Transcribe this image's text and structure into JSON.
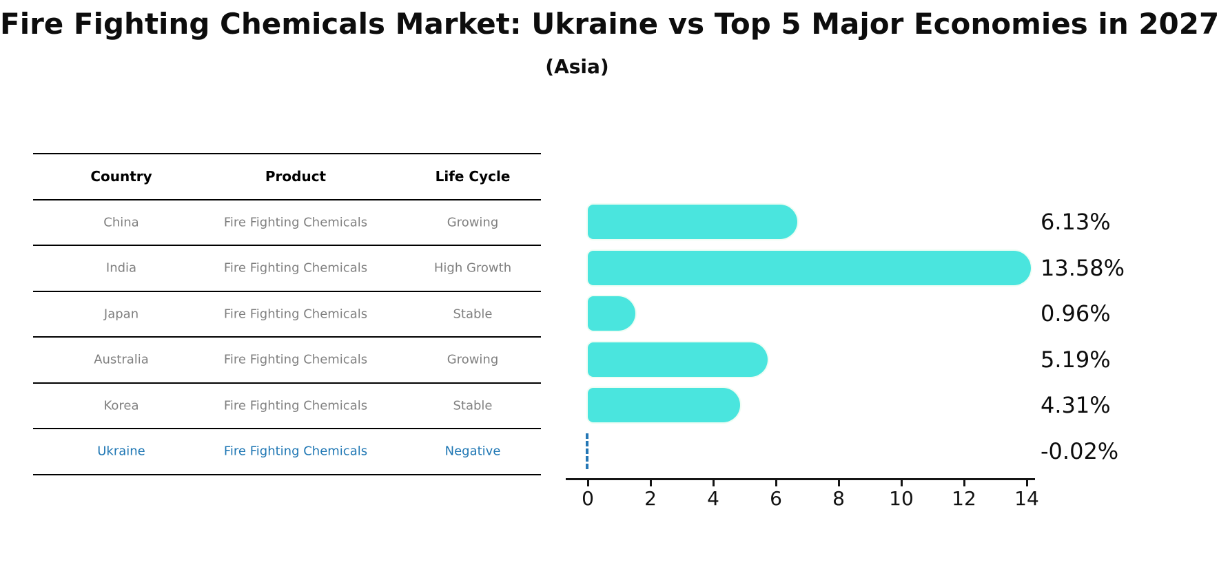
{
  "title": "Fire Fighting Chemicals Market: Ukraine vs Top 5 Major Economies in 2027",
  "subtitle": "(Asia)",
  "table": {
    "headers": [
      "Country",
      "Product",
      "Life Cycle"
    ],
    "rows": [
      {
        "country": "China",
        "product": "Fire Fighting Chemicals",
        "life_cycle": "Growing",
        "highlight": false
      },
      {
        "country": "India",
        "product": "Fire Fighting Chemicals",
        "life_cycle": "High Growth",
        "highlight": false
      },
      {
        "country": "Japan",
        "product": "Fire Fighting Chemicals",
        "life_cycle": "Stable",
        "highlight": false
      },
      {
        "country": "Australia",
        "product": "Fire Fighting Chemicals",
        "life_cycle": "Growing",
        "highlight": false
      },
      {
        "country": "Korea",
        "product": "Fire Fighting Chemicals",
        "life_cycle": "Stable",
        "highlight": false
      },
      {
        "country": "Ukraine",
        "product": "Fire Fighting Chemicals",
        "life_cycle": "Negative",
        "highlight": true
      }
    ]
  },
  "chart_data": {
    "type": "bar",
    "orientation": "horizontal",
    "categories": [
      "China",
      "India",
      "Japan",
      "Australia",
      "Korea",
      "Ukraine"
    ],
    "values": [
      6.13,
      13.58,
      0.96,
      5.19,
      4.31,
      -0.02
    ],
    "value_labels": [
      "6.13%",
      "13.58%",
      "0.96%",
      "5.19%",
      "4.31%",
      "-0.02%"
    ],
    "xticks": [
      0,
      2,
      4,
      6,
      8,
      10,
      12,
      14
    ],
    "xlim": [
      -0.7,
      14.26
    ],
    "grid": false,
    "legend": "none",
    "bar_color": "#4ae5de",
    "bar_edge_color": "#eefdf4",
    "negative_marker_color": "#2577b5",
    "highlight_text_color": "#1f77b4",
    "text_color_muted": "#7f7f7f",
    "axis_color": "#151515"
  }
}
